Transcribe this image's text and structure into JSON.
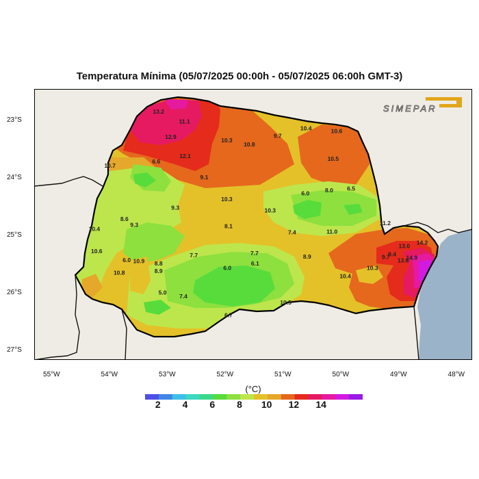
{
  "title": "Temperatura Mínima (05/07/2025 00:00h - 05/07/2025 06:00h GMT-3)",
  "logo_text": "SIMEPAR",
  "colors": {
    "land": "#eeece4",
    "sea": "#9bb3c9",
    "t6": "#58dc3c",
    "t7": "#8de03e",
    "t8": "#bde64c",
    "t9": "#e4c129",
    "t10": "#e5a82a",
    "t11": "#e5681d",
    "t12": "#e52b1c",
    "t13": "#e51a60",
    "t14": "#e51aa0",
    "t15": "#d21ae0"
  },
  "lon_labels": [
    {
      "text": "55°W",
      "lon": -55
    },
    {
      "text": "54°W",
      "lon": -54
    },
    {
      "text": "53°W",
      "lon": -53
    },
    {
      "text": "52°W",
      "lon": -52
    },
    {
      "text": "51°W",
      "lon": -51
    },
    {
      "text": "50°W",
      "lon": -50
    },
    {
      "text": "49°W",
      "lon": -49
    },
    {
      "text": "48°W",
      "lon": -48
    }
  ],
  "lat_labels": [
    {
      "text": "23°S",
      "lat": -23
    },
    {
      "text": "24°S",
      "lat": -24
    },
    {
      "text": "25°S",
      "lat": -25
    },
    {
      "text": "26°S",
      "lat": -26
    },
    {
      "text": "27°S",
      "lat": -27
    }
  ],
  "colorbar": {
    "unit": "(°C)",
    "labels": [
      "2",
      "4",
      "6",
      "8",
      "10",
      "12",
      "14"
    ],
    "bins": [
      {
        "from": 1,
        "to": 2,
        "color": "#4f4fe6"
      },
      {
        "from": 2,
        "to": 3,
        "color": "#3f86e6"
      },
      {
        "from": 3,
        "to": 4,
        "color": "#3fbfe8"
      },
      {
        "from": 4,
        "to": 5,
        "color": "#3fd8c0"
      },
      {
        "from": 5,
        "to": 6,
        "color": "#3cd88a"
      },
      {
        "from": 6,
        "to": 7,
        "color": "#58dc3c"
      },
      {
        "from": 7,
        "to": 8,
        "color": "#8de03e"
      },
      {
        "from": 8,
        "to": 9,
        "color": "#bde64c"
      },
      {
        "from": 9,
        "to": 10,
        "color": "#e4c129"
      },
      {
        "from": 10,
        "to": 11,
        "color": "#e5a82a"
      },
      {
        "from": 11,
        "to": 12,
        "color": "#e5681d"
      },
      {
        "from": 12,
        "to": 13,
        "color": "#e52b1c"
      },
      {
        "from": 13,
        "to": 14,
        "color": "#e51a60"
      },
      {
        "from": 14,
        "to": 15,
        "color": "#e51aa0"
      },
      {
        "from": 15,
        "to": 16,
        "color": "#d21ae0"
      },
      {
        "from": 16,
        "to": 17,
        "color": "#9a1ae6"
      }
    ]
  },
  "stations": [
    {
      "v": "13.2",
      "lon": -53.17,
      "lat": -22.88
    },
    {
      "v": "11.1",
      "lon": -52.72,
      "lat": -23.05
    },
    {
      "v": "12.9",
      "lon": -52.96,
      "lat": -23.32
    },
    {
      "v": "12.1",
      "lon": -52.71,
      "lat": -23.65
    },
    {
      "v": "10.3",
      "lon": -51.99,
      "lat": -23.38
    },
    {
      "v": "10.8",
      "lon": -51.6,
      "lat": -23.45
    },
    {
      "v": "9.7",
      "lon": -51.11,
      "lat": -23.3
    },
    {
      "v": "10.4",
      "lon": -50.62,
      "lat": -23.17
    },
    {
      "v": "10.6",
      "lon": -50.09,
      "lat": -23.22
    },
    {
      "v": "10.5",
      "lon": -50.15,
      "lat": -23.7
    },
    {
      "v": "10.7",
      "lon": -54.01,
      "lat": -23.82
    },
    {
      "v": "6.6",
      "lon": -53.21,
      "lat": -23.75
    },
    {
      "v": "9.1",
      "lon": -52.38,
      "lat": -24.02
    },
    {
      "v": "6.0",
      "lon": -50.63,
      "lat": -24.3
    },
    {
      "v": "8.0",
      "lon": -50.22,
      "lat": -24.25
    },
    {
      "v": "6.5",
      "lon": -49.84,
      "lat": -24.22
    },
    {
      "v": "10.3",
      "lon": -51.99,
      "lat": -24.4
    },
    {
      "v": "9.3",
      "lon": -52.88,
      "lat": -24.55
    },
    {
      "v": "10.3",
      "lon": -51.24,
      "lat": -24.6
    },
    {
      "v": "8.6",
      "lon": -53.76,
      "lat": -24.75
    },
    {
      "v": "9.3",
      "lon": -53.59,
      "lat": -24.85
    },
    {
      "v": "10.4",
      "lon": -54.28,
      "lat": -24.92
    },
    {
      "v": "8.1",
      "lon": -51.96,
      "lat": -24.87
    },
    {
      "v": "7.4",
      "lon": -50.86,
      "lat": -24.98
    },
    {
      "v": "11.0",
      "lon": -50.17,
      "lat": -24.97
    },
    {
      "v": "11.2",
      "lon": -49.25,
      "lat": -24.82
    },
    {
      "v": "10.6",
      "lon": -54.24,
      "lat": -25.31
    },
    {
      "v": "6.0",
      "lon": -53.72,
      "lat": -25.46
    },
    {
      "v": "10.9",
      "lon": -53.51,
      "lat": -25.48
    },
    {
      "v": "8.8",
      "lon": -53.17,
      "lat": -25.52
    },
    {
      "v": "8.9",
      "lon": -53.17,
      "lat": -25.65
    },
    {
      "v": "7.7",
      "lon": -52.56,
      "lat": -25.38
    },
    {
      "v": "7.7",
      "lon": -51.51,
      "lat": -25.34
    },
    {
      "v": "6.1",
      "lon": -51.5,
      "lat": -25.52
    },
    {
      "v": "6.0",
      "lon": -51.98,
      "lat": -25.6
    },
    {
      "v": "8.9",
      "lon": -50.6,
      "lat": -25.4
    },
    {
      "v": "9.7",
      "lon": -49.24,
      "lat": -25.41
    },
    {
      "v": "9.4",
      "lon": -49.13,
      "lat": -25.36
    },
    {
      "v": "13.0",
      "lon": -48.92,
      "lat": -25.22
    },
    {
      "v": "14.2",
      "lon": -48.61,
      "lat": -25.16
    },
    {
      "v": "14.9",
      "lon": -48.79,
      "lat": -25.42
    },
    {
      "v": "13.6",
      "lon": -48.94,
      "lat": -25.47
    },
    {
      "v": "10.3",
      "lon": -49.47,
      "lat": -25.6
    },
    {
      "v": "10.4",
      "lon": -49.94,
      "lat": -25.74
    },
    {
      "v": "10.8",
      "lon": -53.85,
      "lat": -25.68
    },
    {
      "v": "5.0",
      "lon": -53.1,
      "lat": -26.03
    },
    {
      "v": "7.4",
      "lon": -52.74,
      "lat": -26.09
    },
    {
      "v": "10.5",
      "lon": -50.97,
      "lat": -26.2
    },
    {
      "v": "6.7",
      "lon": -51.96,
      "lat": -26.42
    }
  ]
}
